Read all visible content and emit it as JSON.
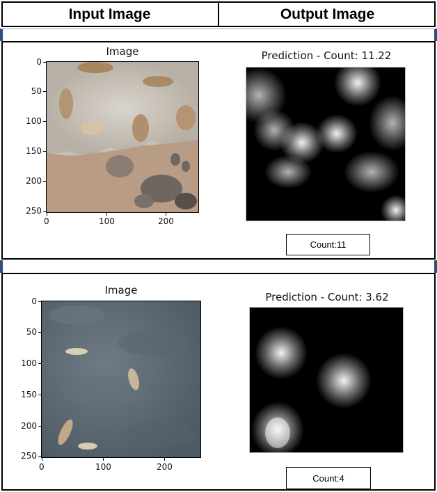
{
  "header": {
    "input_title": "Input Image",
    "output_title": "Output Image"
  },
  "rows": [
    {
      "input_plot": {
        "title": "Image",
        "y_ticks": [
          "0",
          "50",
          "100",
          "150",
          "200",
          "250"
        ],
        "x_ticks": [
          "0",
          "100",
          "200"
        ]
      },
      "output_plot": {
        "title": "Prediction - Count: 11.22"
      },
      "count_label": "Count:11"
    },
    {
      "input_plot": {
        "title": "Image",
        "y_ticks": [
          "0",
          "50",
          "100",
          "150",
          "200",
          "250"
        ],
        "x_ticks": [
          "0",
          "100",
          "200"
        ]
      },
      "output_plot": {
        "title": "Prediction - Count: 3.62"
      },
      "count_label": "Count:4"
    }
  ],
  "colors": {
    "frame": "#000000",
    "side_mark": "#2e4f7e",
    "heatmap_bg": "#000000",
    "heatmap_blob": "#ffffff"
  }
}
